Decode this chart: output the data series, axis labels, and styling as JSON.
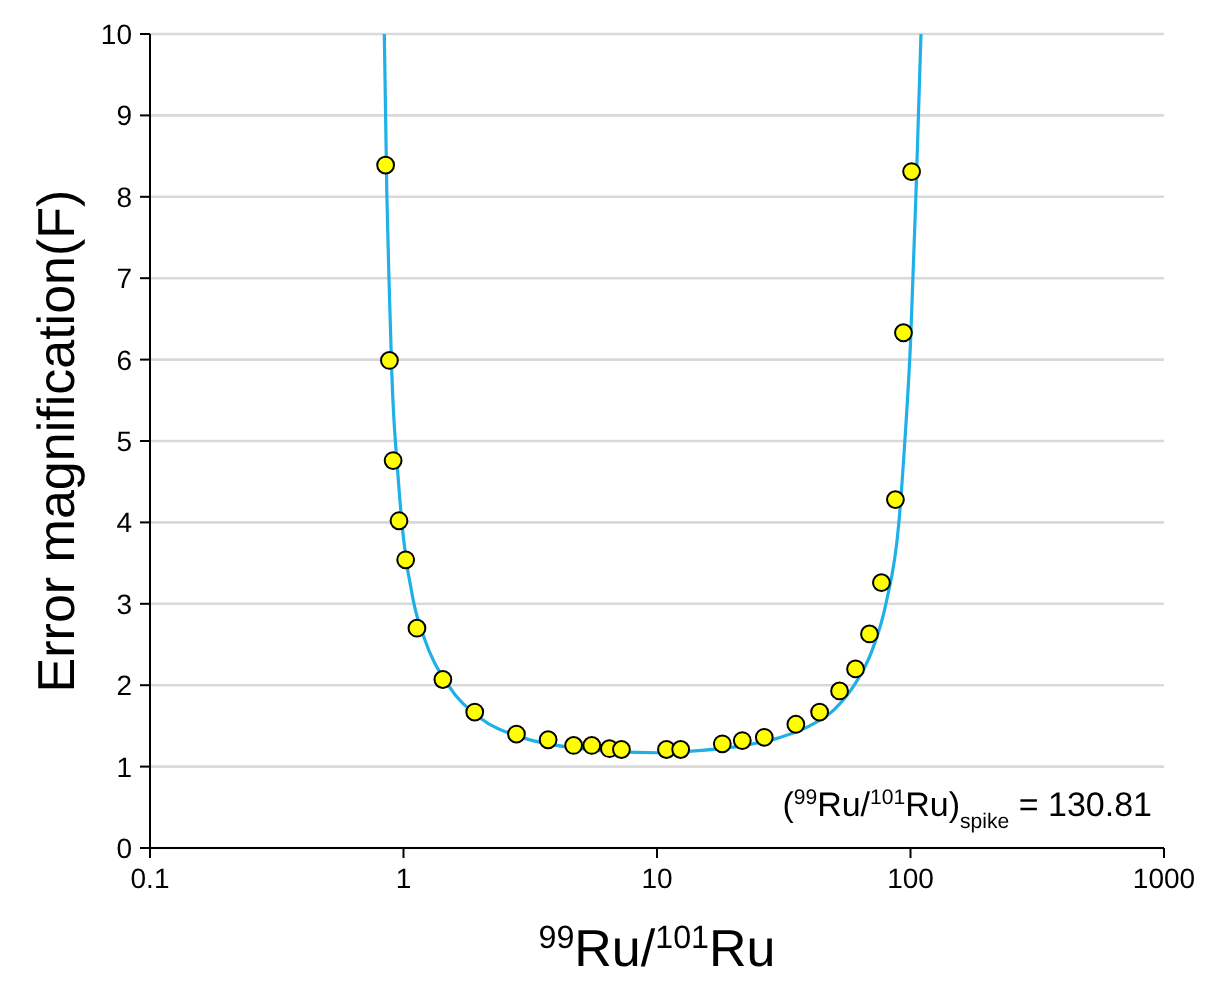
{
  "chart_data": {
    "type": "scatter",
    "xlabel": "$^{99}$Ru/$^{101}$Ru",
    "ylabel": "Error magnification(F)",
    "log": "x",
    "xlim": [
      0.1,
      1000
    ],
    "xticks": [
      0.1,
      1,
      10,
      100,
      1000
    ],
    "ylim": [
      0,
      10
    ],
    "yticks": [
      0,
      1,
      2,
      3,
      4,
      5,
      6,
      7,
      8,
      9,
      10
    ],
    "grid": "y",
    "annotations": [
      "($^{99}$Ru/$^{101}$Ru)$_{spike}$ = 130.81"
    ],
    "series": [
      {
        "type": "line",
        "color": "#1fb0e8",
        "x": [
          0.84,
          0.86,
          0.88,
          0.9,
          0.95,
          1,
          1.1,
          1.2,
          1.5,
          2,
          3,
          5,
          7,
          10,
          15,
          20,
          30,
          40,
          50,
          60,
          70,
          80,
          90,
          95,
          100,
          105,
          110
        ],
        "values": [
          10,
          8,
          6.8,
          5.8,
          4.6,
          3.8,
          3,
          2.6,
          2,
          1.6,
          1.35,
          1.22,
          1.18,
          1.17,
          1.2,
          1.24,
          1.35,
          1.5,
          1.7,
          2,
          2.4,
          3,
          4,
          5,
          6.2,
          8,
          10
        ]
      },
      {
        "marker": "circle",
        "color": "#ffff00",
        "x": [
          0.85,
          0.88,
          0.91,
          0.96,
          1.02,
          1.13,
          1.43,
          1.91,
          2.79,
          3.72,
          4.69,
          5.53,
          6.49,
          7.24,
          10.9,
          12.4,
          18.1,
          21.7,
          26.5,
          35.3,
          43.8,
          52.5,
          60.7,
          68.9,
          76.8,
          87.2,
          93.8,
          101
        ],
        "values": [
          8.39,
          5.99,
          4.76,
          4.02,
          3.54,
          2.7,
          2.07,
          1.67,
          1.4,
          1.33,
          1.26,
          1.26,
          1.22,
          1.21,
          1.21,
          1.21,
          1.28,
          1.32,
          1.36,
          1.52,
          1.67,
          1.93,
          2.2,
          2.63,
          3.26,
          4.28,
          6.33,
          8.31
        ]
      }
    ]
  }
}
